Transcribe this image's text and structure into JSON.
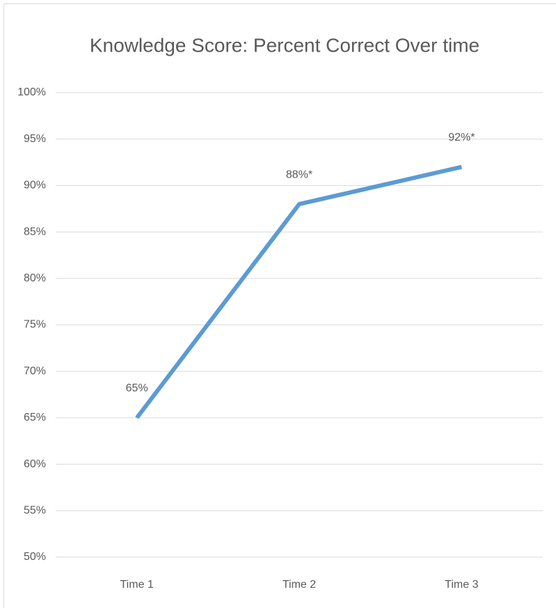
{
  "chart_data": {
    "type": "line",
    "title": "Knowledge Score: Percent Correct Over time",
    "categories": [
      "Time 1",
      "Time 2",
      "Time 3"
    ],
    "values": [
      65,
      88,
      92
    ],
    "value_labels": [
      "65%",
      "88%*",
      "92%*"
    ],
    "color": "#5b9bd5",
    "ylim": [
      50,
      100
    ],
    "yticks": [
      {
        "value": 50,
        "label": "50%"
      },
      {
        "value": 55,
        "label": "55%"
      },
      {
        "value": 60,
        "label": "60%"
      },
      {
        "value": 65,
        "label": "65%"
      },
      {
        "value": 70,
        "label": "70%"
      },
      {
        "value": 75,
        "label": "75%"
      },
      {
        "value": 80,
        "label": "80%"
      },
      {
        "value": 85,
        "label": "85%"
      },
      {
        "value": 90,
        "label": "90%"
      },
      {
        "value": 95,
        "label": "95%"
      },
      {
        "value": 100,
        "label": "100%"
      }
    ],
    "grid": true
  }
}
